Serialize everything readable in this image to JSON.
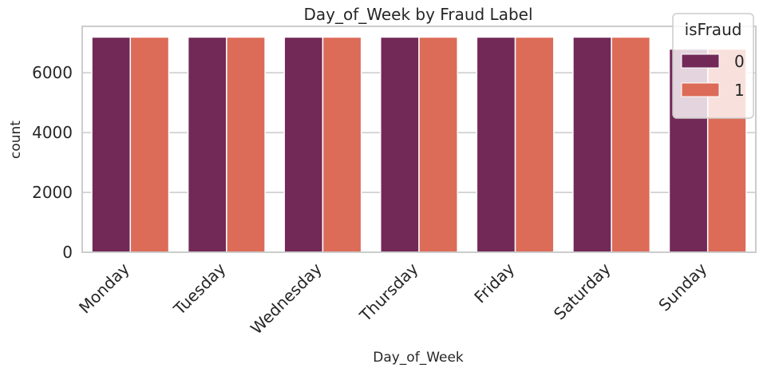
{
  "chart_data": {
    "type": "bar",
    "title": "Day_of_Week by Fraud Label",
    "xlabel": "Day_of_Week",
    "ylabel": "count",
    "categories": [
      "Monday",
      "Tuesday",
      "Wednesday",
      "Thursday",
      "Friday",
      "Saturday",
      "Sunday"
    ],
    "series": [
      {
        "name": "0",
        "color": "#722957",
        "values": [
          7190,
          7190,
          7190,
          7190,
          7190,
          7190,
          6790
        ]
      },
      {
        "name": "1",
        "color": "#dc6b58",
        "values": [
          7190,
          7190,
          7190,
          7190,
          7190,
          7190,
          6790
        ]
      }
    ],
    "ylim": [
      0,
      7550
    ],
    "yticks": [
      0,
      2000,
      4000,
      6000
    ],
    "ytick_labels": [
      "0",
      "2000",
      "4000",
      "6000"
    ],
    "grid": true,
    "legend": {
      "title": "isFraud",
      "placement": "top-right"
    }
  }
}
